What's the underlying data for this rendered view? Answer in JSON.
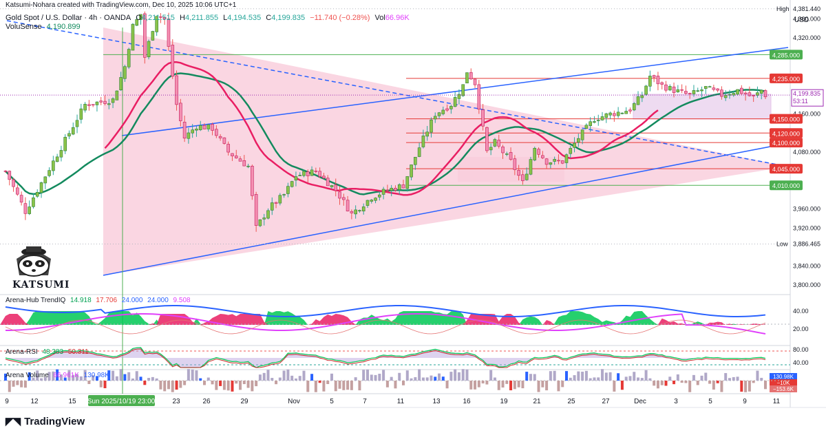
{
  "header": {
    "author_line": "Katsumi-Nohara created with TradingView.com, Dec 10, 2025 10:06 UTC+1",
    "symbol": "Gold Spot / U.S. Dollar · 4h · OANDA",
    "open_label": "O",
    "open": "4,211.515",
    "high_label": "H",
    "high": "4,211.855",
    "low_label": "L",
    "low": "4,194.535",
    "close_label": "C",
    "close": "4,199.835",
    "change": "−11.740 (−0.28%)",
    "vol_label": "Vol",
    "vol": "66.96K",
    "volusense_label": "VoluSense",
    "volusense": "4,190.899"
  },
  "axis": {
    "currency": "USD"
  },
  "logo_text": "KATSUMI",
  "footer": {
    "brand": "TradingView"
  },
  "colors": {
    "bull": "#26a69a",
    "bear": "#ef5350",
    "triangle_fill": "#f8c8d8",
    "trend_blue": "#2962ff",
    "red_ma": "#e91e63",
    "green_ma": "#138a5e",
    "green_line": "#4caf50",
    "red_line": "#e53935",
    "box_fill": "#e1bee7"
  },
  "chart_data": {
    "type": "candlestick",
    "y_range": [
      3780,
      4400
    ],
    "y_ticks": [
      "4,360.000",
      "4,320.000",
      "4,160.000",
      "4,080.000",
      "3,960.000",
      "3,920.000",
      "3,840.000",
      "3,800.000"
    ],
    "x_ticks": [
      "9",
      "12",
      "15",
      "23",
      "26",
      "29",
      "Nov",
      "5",
      "7",
      "11",
      "13",
      "16",
      "19",
      "21",
      "25",
      "27",
      "Dec",
      "3",
      "5",
      "9",
      "11"
    ],
    "cursor_label": "Sun 2025/10/19  23:00",
    "markers": {
      "high": {
        "label": "High",
        "value": "4,381.440"
      },
      "low": {
        "label": "Low",
        "value": "3,886.465"
      },
      "current": {
        "value": "4,199.835",
        "countdown": "53:11"
      }
    },
    "levels": [
      {
        "value": "4,285.000",
        "color": "#4caf50"
      },
      {
        "value": "4,235.000",
        "color": "#e53935"
      },
      {
        "value": "4,150.000",
        "color": "#e53935"
      },
      {
        "value": "4,120.000",
        "color": "#e53935"
      },
      {
        "value": "4,100.000",
        "color": "#e53935"
      },
      {
        "value": "4,045.000",
        "color": "#e53935"
      },
      {
        "value": "4,010.000",
        "color": "#4caf50"
      }
    ],
    "close_path": [
      [
        0,
        4040
      ],
      [
        5,
        3955
      ],
      [
        12,
        4060
      ],
      [
        20,
        4180
      ],
      [
        27,
        4190
      ],
      [
        30,
        4260
      ],
      [
        32,
        4345
      ],
      [
        34,
        4370
      ],
      [
        35,
        4280
      ],
      [
        38,
        4370
      ],
      [
        40,
        4360
      ],
      [
        43,
        4180
      ],
      [
        45,
        4110
      ],
      [
        48,
        4135
      ],
      [
        52,
        4130
      ],
      [
        56,
        4080
      ],
      [
        61,
        4050
      ],
      [
        63,
        3920
      ],
      [
        66,
        3960
      ],
      [
        70,
        3990
      ],
      [
        73,
        4030
      ],
      [
        78,
        4040
      ],
      [
        83,
        4000
      ],
      [
        87,
        3950
      ],
      [
        92,
        3985
      ],
      [
        96,
        4000
      ],
      [
        100,
        4010
      ],
      [
        104,
        4090
      ],
      [
        108,
        4160
      ],
      [
        112,
        4180
      ],
      [
        115,
        4220
      ],
      [
        116,
        4250
      ],
      [
        118,
        4225
      ],
      [
        121,
        4080
      ],
      [
        123,
        4100
      ],
      [
        127,
        4060
      ],
      [
        130,
        4015
      ],
      [
        133,
        4090
      ],
      [
        136,
        4060
      ],
      [
        140,
        4060
      ],
      [
        144,
        4110
      ],
      [
        148,
        4150
      ],
      [
        152,
        4160
      ],
      [
        155,
        4165
      ],
      [
        157,
        4170
      ],
      [
        160,
        4200
      ],
      [
        162,
        4240
      ],
      [
        165,
        4220
      ],
      [
        168,
        4210
      ],
      [
        172,
        4200
      ],
      [
        176,
        4215
      ],
      [
        180,
        4200
      ],
      [
        184,
        4210
      ],
      [
        188,
        4195
      ],
      [
        190,
        4210
      ],
      [
        191,
        4200
      ]
    ],
    "indicators": {
      "trendiq": {
        "name": "Arena-Hub TrendIQ",
        "values": [
          "14.918",
          "17.706",
          "24.000",
          "24.000",
          "9.508"
        ],
        "ticks": [
          "40.00",
          "20.00"
        ]
      },
      "rsi": {
        "name": "Arena-RSI",
        "values": [
          "48.383",
          "50.311"
        ],
        "ticks": [
          "80.00",
          "40.00"
        ]
      },
      "volume": {
        "name": "Arena Volume",
        "values": [
          "66.961K",
          "130.98K"
        ],
        "badges": [
          "130.98K",
          "−10K",
          "−153.6K"
        ]
      }
    }
  }
}
